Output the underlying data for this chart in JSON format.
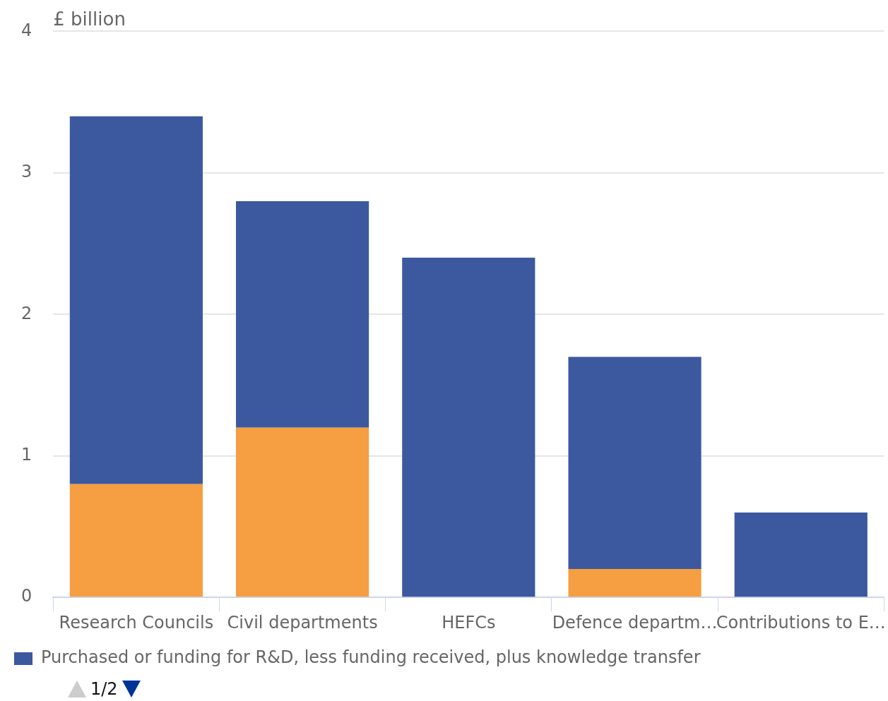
{
  "chart_data": {
    "type": "bar",
    "ylabel": "£ billion",
    "categories": [
      "Research Councils",
      "Civil departments",
      "HEFCs",
      "Defence departm…",
      "Contributions to E…"
    ],
    "series": [
      {
        "color": "#f59e42",
        "values": [
          0.8,
          1.2,
          0,
          0.2,
          0
        ]
      },
      {
        "name": "Purchased or funding for R&D, less funding received, plus knowledge transfer",
        "color": "#3c589f",
        "values": [
          2.6,
          1.6,
          2.4,
          1.5,
          0.6
        ]
      }
    ],
    "stacked": true,
    "ylim": [
      0,
      4
    ],
    "yticks": [
      0,
      1,
      2,
      3,
      4
    ],
    "grid": "y",
    "legend": "bottom",
    "annotations": [
      "1/2"
    ]
  }
}
